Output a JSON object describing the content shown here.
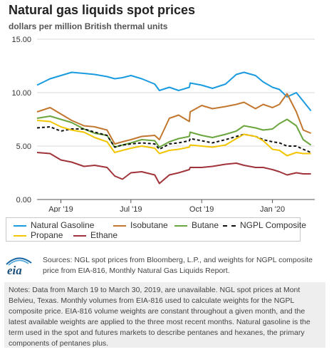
{
  "header": {
    "title": "Natural gas liquids spot prices",
    "subtitle": "dollars per million British thermal units"
  },
  "chart_data": {
    "type": "line",
    "title": "Natural gas liquids spot prices",
    "ylabel": "dollars per million British thermal units",
    "ylim": [
      0,
      15
    ],
    "yticks": [
      "0.00",
      "5.00",
      "10.00",
      "15.00"
    ],
    "xlim": [
      "2019-03-01",
      "2020-02-25"
    ],
    "xticks": [
      {
        "date": "2019-04-01",
        "label": "Apr '19"
      },
      {
        "date": "2019-07-01",
        "label": "Jul '19"
      },
      {
        "date": "2019-10-01",
        "label": "Oct '19"
      },
      {
        "date": "2020-01-01",
        "label": "Jan '20"
      }
    ],
    "grid": true,
    "legend_position": "bottom",
    "series": [
      {
        "name": "Natural Gasoline",
        "color": "#1a9be0",
        "dash": "solid",
        "points": [
          [
            "2019-03-01",
            10.7
          ],
          [
            "2019-03-18",
            11.3
          ],
          [
            "2019-04-01",
            11.6
          ],
          [
            "2019-04-15",
            11.9
          ],
          [
            "2019-05-01",
            11.8
          ],
          [
            "2019-05-15",
            11.7
          ],
          [
            "2019-05-31",
            11.5
          ],
          [
            "2019-06-10",
            11.3
          ],
          [
            "2019-06-20",
            11.4
          ],
          [
            "2019-07-01",
            11.6
          ],
          [
            "2019-07-15",
            11.3
          ],
          [
            "2019-08-01",
            10.8
          ],
          [
            "2019-08-07",
            10.2
          ],
          [
            "2019-08-20",
            10.5
          ],
          [
            "2019-09-01",
            10.2
          ],
          [
            "2019-09-15",
            10.5
          ],
          [
            "2019-09-16",
            10.9
          ],
          [
            "2019-10-01",
            10.7
          ],
          [
            "2019-10-15",
            10.4
          ],
          [
            "2019-11-01",
            10.8
          ],
          [
            "2019-11-15",
            11.7
          ],
          [
            "2019-11-25",
            11.9
          ],
          [
            "2019-12-10",
            11.6
          ],
          [
            "2019-12-20",
            11.0
          ],
          [
            "2020-01-01",
            10.5
          ],
          [
            "2020-01-10",
            10.3
          ],
          [
            "2020-01-20",
            9.6
          ],
          [
            "2020-02-01",
            10.0
          ],
          [
            "2020-02-10",
            9.2
          ],
          [
            "2020-02-20",
            8.3
          ]
        ]
      },
      {
        "name": "Isobutane",
        "color": "#c2772f",
        "dash": "solid",
        "points": [
          [
            "2019-03-01",
            8.2
          ],
          [
            "2019-03-18",
            8.6
          ],
          [
            "2019-04-01",
            8.0
          ],
          [
            "2019-04-15",
            7.4
          ],
          [
            "2019-05-01",
            6.9
          ],
          [
            "2019-05-15",
            6.8
          ],
          [
            "2019-05-31",
            6.5
          ],
          [
            "2019-06-10",
            5.2
          ],
          [
            "2019-06-20",
            5.4
          ],
          [
            "2019-07-01",
            5.6
          ],
          [
            "2019-07-15",
            5.9
          ],
          [
            "2019-08-01",
            6.0
          ],
          [
            "2019-08-07",
            5.6
          ],
          [
            "2019-08-20",
            7.6
          ],
          [
            "2019-09-01",
            7.9
          ],
          [
            "2019-09-15",
            7.3
          ],
          [
            "2019-09-16",
            8.2
          ],
          [
            "2019-10-01",
            8.8
          ],
          [
            "2019-10-15",
            8.5
          ],
          [
            "2019-11-01",
            8.7
          ],
          [
            "2019-11-15",
            8.9
          ],
          [
            "2019-11-25",
            9.1
          ],
          [
            "2019-12-10",
            8.5
          ],
          [
            "2019-12-20",
            8.9
          ],
          [
            "2020-01-01",
            8.6
          ],
          [
            "2020-01-10",
            8.9
          ],
          [
            "2020-01-20",
            9.9
          ],
          [
            "2020-02-01",
            8.2
          ],
          [
            "2020-02-10",
            6.5
          ],
          [
            "2020-02-20",
            6.2
          ]
        ]
      },
      {
        "name": "Butane",
        "color": "#6aa53d",
        "dash": "solid",
        "points": [
          [
            "2019-03-01",
            7.6
          ],
          [
            "2019-03-18",
            7.8
          ],
          [
            "2019-04-01",
            7.5
          ],
          [
            "2019-04-15",
            7.2
          ],
          [
            "2019-05-01",
            6.6
          ],
          [
            "2019-05-15",
            6.2
          ],
          [
            "2019-05-31",
            6.0
          ],
          [
            "2019-06-10",
            4.9
          ],
          [
            "2019-06-20",
            5.1
          ],
          [
            "2019-07-01",
            5.3
          ],
          [
            "2019-07-15",
            5.6
          ],
          [
            "2019-08-01",
            5.5
          ],
          [
            "2019-08-07",
            4.9
          ],
          [
            "2019-08-20",
            5.4
          ],
          [
            "2019-09-01",
            5.7
          ],
          [
            "2019-09-15",
            5.9
          ],
          [
            "2019-09-16",
            6.3
          ],
          [
            "2019-10-01",
            6.0
          ],
          [
            "2019-10-15",
            5.8
          ],
          [
            "2019-11-01",
            6.1
          ],
          [
            "2019-11-15",
            6.4
          ],
          [
            "2019-11-25",
            6.9
          ],
          [
            "2019-12-10",
            6.7
          ],
          [
            "2019-12-20",
            6.5
          ],
          [
            "2020-01-01",
            6.6
          ],
          [
            "2020-01-10",
            7.1
          ],
          [
            "2020-01-20",
            7.5
          ],
          [
            "2020-02-01",
            6.9
          ],
          [
            "2020-02-10",
            5.6
          ],
          [
            "2020-02-20",
            5.1
          ]
        ]
      },
      {
        "name": "NGPL Composite",
        "color": "#111111",
        "dash": "dashed",
        "points": [
          [
            "2019-03-01",
            6.7
          ],
          [
            "2019-03-18",
            6.8
          ],
          [
            "2019-04-01",
            6.4
          ],
          [
            "2019-04-15",
            6.6
          ],
          [
            "2019-05-01",
            6.6
          ],
          [
            "2019-05-15",
            6.3
          ],
          [
            "2019-05-31",
            6.0
          ],
          [
            "2019-06-10",
            4.9
          ],
          [
            "2019-06-20",
            5.1
          ],
          [
            "2019-07-01",
            5.2
          ],
          [
            "2019-07-15",
            5.3
          ],
          [
            "2019-08-01",
            5.2
          ],
          [
            "2019-08-07",
            4.7
          ],
          [
            "2019-08-20",
            5.2
          ],
          [
            "2019-09-01",
            5.3
          ],
          [
            "2019-09-15",
            5.5
          ],
          [
            "2019-09-16",
            5.7
          ],
          [
            "2019-10-01",
            5.5
          ],
          [
            "2019-10-15",
            5.3
          ],
          [
            "2019-11-01",
            5.6
          ],
          [
            "2019-11-15",
            5.9
          ],
          [
            "2019-11-25",
            6.1
          ],
          [
            "2019-12-10",
            5.9
          ],
          [
            "2019-12-20",
            5.6
          ],
          [
            "2020-01-01",
            5.4
          ],
          [
            "2020-01-10",
            5.3
          ],
          [
            "2020-01-20",
            5.0
          ],
          [
            "2020-02-01",
            5.0
          ],
          [
            "2020-02-10",
            4.7
          ],
          [
            "2020-02-20",
            4.4
          ]
        ]
      },
      {
        "name": "Propane",
        "color": "#f2c500",
        "dash": "solid",
        "points": [
          [
            "2019-03-01",
            7.4
          ],
          [
            "2019-03-18",
            7.3
          ],
          [
            "2019-04-01",
            6.8
          ],
          [
            "2019-04-15",
            6.5
          ],
          [
            "2019-05-01",
            6.3
          ],
          [
            "2019-05-15",
            5.8
          ],
          [
            "2019-05-31",
            5.4
          ],
          [
            "2019-06-10",
            4.4
          ],
          [
            "2019-06-20",
            4.6
          ],
          [
            "2019-07-01",
            4.8
          ],
          [
            "2019-07-15",
            5.0
          ],
          [
            "2019-08-01",
            4.8
          ],
          [
            "2019-08-07",
            4.3
          ],
          [
            "2019-08-20",
            4.6
          ],
          [
            "2019-09-01",
            4.7
          ],
          [
            "2019-09-15",
            4.9
          ],
          [
            "2019-09-16",
            5.1
          ],
          [
            "2019-10-01",
            5.0
          ],
          [
            "2019-10-15",
            4.9
          ],
          [
            "2019-11-01",
            5.1
          ],
          [
            "2019-11-15",
            5.7
          ],
          [
            "2019-11-25",
            6.1
          ],
          [
            "2019-12-10",
            5.9
          ],
          [
            "2019-12-20",
            5.5
          ],
          [
            "2020-01-01",
            4.7
          ],
          [
            "2020-01-10",
            4.6
          ],
          [
            "2020-01-20",
            4.1
          ],
          [
            "2020-02-01",
            4.4
          ],
          [
            "2020-02-10",
            4.3
          ],
          [
            "2020-02-20",
            4.3
          ]
        ]
      },
      {
        "name": "Ethane",
        "color": "#a0343a",
        "dash": "solid",
        "points": [
          [
            "2019-03-01",
            4.4
          ],
          [
            "2019-03-18",
            4.3
          ],
          [
            "2019-04-01",
            3.7
          ],
          [
            "2019-04-15",
            3.5
          ],
          [
            "2019-05-01",
            3.1
          ],
          [
            "2019-05-15",
            3.2
          ],
          [
            "2019-05-31",
            3.0
          ],
          [
            "2019-06-10",
            2.2
          ],
          [
            "2019-06-20",
            1.9
          ],
          [
            "2019-07-01",
            2.5
          ],
          [
            "2019-07-15",
            2.6
          ],
          [
            "2019-08-01",
            2.3
          ],
          [
            "2019-08-07",
            1.5
          ],
          [
            "2019-08-20",
            2.3
          ],
          [
            "2019-09-01",
            2.5
          ],
          [
            "2019-09-15",
            2.8
          ],
          [
            "2019-09-16",
            3.0
          ],
          [
            "2019-10-01",
            3.0
          ],
          [
            "2019-10-15",
            3.1
          ],
          [
            "2019-11-01",
            3.3
          ],
          [
            "2019-11-15",
            3.4
          ],
          [
            "2019-11-25",
            3.2
          ],
          [
            "2019-12-10",
            3.0
          ],
          [
            "2019-12-20",
            3.0
          ],
          [
            "2020-01-01",
            2.8
          ],
          [
            "2020-01-10",
            2.6
          ],
          [
            "2020-01-20",
            2.3
          ],
          [
            "2020-02-01",
            2.5
          ],
          [
            "2020-02-10",
            2.4
          ],
          [
            "2020-02-20",
            2.4
          ]
        ]
      }
    ]
  },
  "source": {
    "logo_text": "eia",
    "text": "Sources: NGL spot prices from Bloomberg, L.P., and weights for NGPL composite price from EIA-816, Monthly Natural Gas Liquids Report."
  },
  "notes": {
    "text": "Notes: Data from March 19 to March 30, 2019, are unavailable. NGL spot prices at Mont Belvieu, Texas. Monthly volumes from EIA-816 used to calculate weights for the NGPL composite price. EIA-816 volume weights are constant throughout a given month, and the latest available weights are applied to the three most recent months. Natural gasoline is the term used in the spot and futures markets to describe pentanes and hexanes, the primary components of pentanes plus."
  }
}
